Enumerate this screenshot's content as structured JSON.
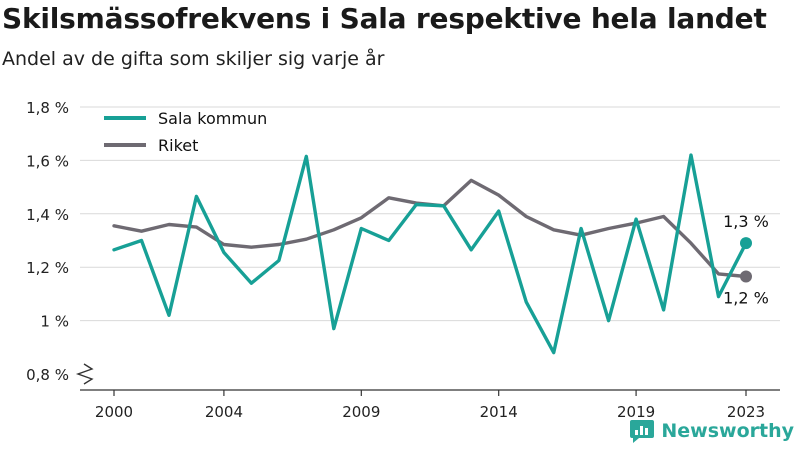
{
  "chart_data": {
    "type": "line",
    "title": "Skilsmässofrekvens i Sala respektive hela landet",
    "subtitle": "Andel av de gifta som skiljer sig varje år",
    "x": [
      2000,
      2001,
      2002,
      2003,
      2004,
      2005,
      2006,
      2007,
      2008,
      2009,
      2010,
      2011,
      2012,
      2013,
      2014,
      2015,
      2016,
      2017,
      2018,
      2019,
      2020,
      2021,
      2022,
      2023
    ],
    "x_ticks": [
      2000,
      2004,
      2009,
      2014,
      2019,
      2023
    ],
    "y_ticks": [
      0.8,
      1.0,
      1.2,
      1.4,
      1.6,
      1.8
    ],
    "y_tick_labels": [
      "0,8 %",
      "1 %",
      "1,2 %",
      "1,4 %",
      "1,6 %",
      "1,8 %"
    ],
    "ylim": [
      0.8,
      1.8
    ],
    "y_axis_break": true,
    "grid": "horizontal",
    "legend_position": "top-left",
    "series": [
      {
        "name": "Sala kommun",
        "color": "#17a096",
        "values": [
          1.265,
          1.3,
          1.02,
          1.465,
          1.255,
          1.14,
          1.225,
          1.615,
          0.97,
          1.345,
          1.3,
          1.435,
          1.43,
          1.265,
          1.41,
          1.07,
          0.88,
          1.345,
          1.0,
          1.38,
          1.04,
          1.62,
          1.09,
          1.29
        ],
        "end_label": "1,3 %"
      },
      {
        "name": "Riket",
        "color": "#6e6a72",
        "values": [
          1.355,
          1.335,
          1.36,
          1.35,
          1.285,
          1.275,
          1.285,
          1.305,
          1.34,
          1.385,
          1.46,
          1.44,
          1.43,
          1.525,
          1.47,
          1.39,
          1.34,
          1.32,
          1.345,
          1.365,
          1.39,
          1.29,
          1.175,
          1.165
        ],
        "end_label": "1,2 %"
      }
    ]
  },
  "brand": {
    "name": "Newsworthy",
    "color": "#2aa79a"
  }
}
